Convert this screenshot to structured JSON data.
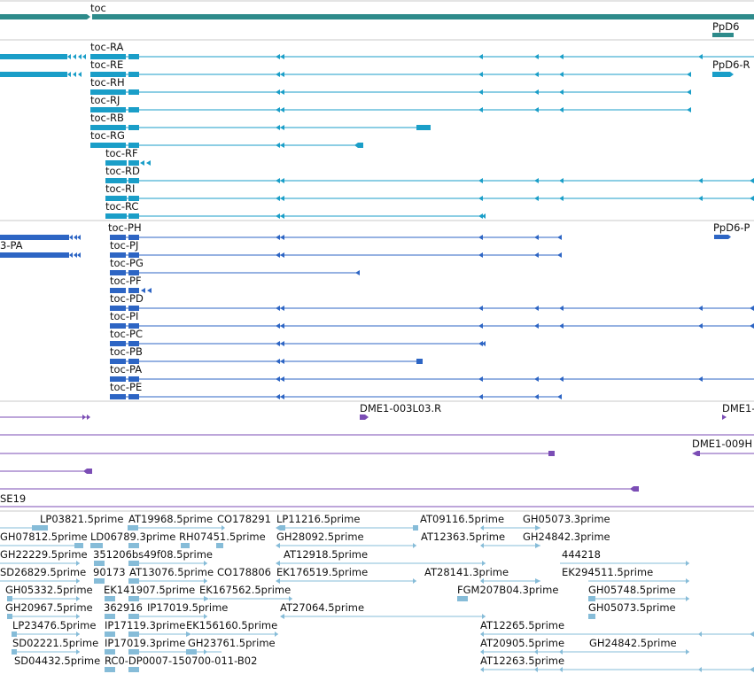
{
  "colors": {
    "gene": "#2e8b8b",
    "transcript_cds": "#1a9ec8",
    "protein": "#2d65c4",
    "clone": "#7b4db5",
    "est": "#86bcd8",
    "separator": "#c9c9c9",
    "label": "#111111"
  },
  "tracks": {
    "gene": {
      "labels": [
        "toc",
        "PpD6"
      ]
    },
    "transcripts": {
      "labels": [
        "toc-RA",
        "toc-RE",
        "toc-RH",
        "toc-RJ",
        "toc-RB",
        "toc-RG",
        "toc-RF",
        "toc-RD",
        "toc-RI",
        "toc-RC",
        "PpD6-R"
      ]
    },
    "proteins": {
      "labels": [
        "toc-PH",
        "toc-PJ",
        "toc-PG",
        "toc-PF",
        "toc-PD",
        "toc-PI",
        "toc-PC",
        "toc-PB",
        "toc-PA",
        "toc-PE",
        "3-PA",
        "PpD6-P"
      ]
    },
    "clones": {
      "labels": [
        "DME1-003L03.R",
        "DME1-",
        "DME1-009H",
        "SE19"
      ]
    },
    "ests": {
      "labels": [
        "LP03821.5prime",
        "AT19968.5prime",
        "CO178291",
        "LP11216.5prime",
        "AT09116.5prime",
        "GH05073.3prime",
        "GH07812.5prime",
        "LD06789.3prime",
        "RH07451.5prime",
        "GH28092.5prime",
        "AT12363.5prime",
        "GH24842.3prime",
        "GH22229.5prime",
        "351206bs49f08.5prime",
        "AT12918.5prime",
        "444218",
        "SD26829.5prime",
        "90173",
        "AT13076.5prime",
        "CO178806",
        "EK176519.5prime",
        "AT28141.3prime",
        "EK294511.5prime",
        "GH05332.5prime",
        "EK141907.5prime",
        "EK167562.5prime",
        "FGM207B04.3prime",
        "GH05748.5prime",
        "GH20967.5prime",
        "362916",
        "IP17019.5prime",
        "AT27064.5prime",
        "GH05073.5prime",
        "LP23476.5prime",
        "IP17119.3prime",
        "EK156160.5prime",
        "AT12265.5prime",
        "SD02221.5prime",
        "IP17019.3prime",
        "GH23761.5prime",
        "AT20905.5prime",
        "GH24842.5prime",
        "SD04432.5prime",
        "RC0-DP0007-150700-011-B02",
        "AT12263.5prime"
      ]
    }
  }
}
